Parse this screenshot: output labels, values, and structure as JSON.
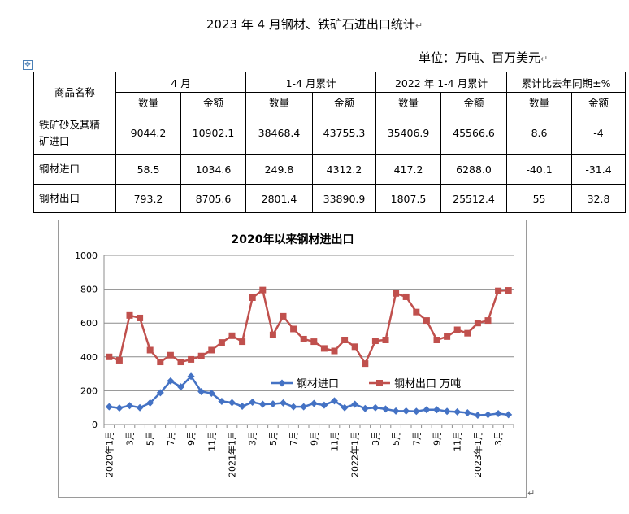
{
  "document": {
    "title": "2023 年 4 月钢材、铁矿石进出口统计",
    "unit": "单位：万吨、百万美元",
    "para_mark": "↵",
    "anchor_icon": "✥"
  },
  "table": {
    "name_header": "商品名称",
    "group_headers": [
      "4 月",
      "1-4 月累计",
      "2022 年 1-4 月累计",
      "累计比去年同期±%"
    ],
    "sub_headers": [
      "数量",
      "金额",
      "数量",
      "金额",
      "数量",
      "金额",
      "数量",
      "金额"
    ],
    "rows": [
      {
        "name_line1": "铁矿砂及其精",
        "name_line2": "矿进口",
        "values": [
          "9044.2",
          "10902.1",
          "38468.4",
          "43755.3",
          "35406.9",
          "45566.6",
          "8.6",
          "-4"
        ]
      },
      {
        "name_line1": "钢材进口",
        "name_line2": "",
        "values": [
          "58.5",
          "1034.6",
          "249.8",
          "4312.2",
          "417.2",
          "6288.0",
          "-40.1",
          "-31.4"
        ]
      },
      {
        "name_line1": "钢材出口",
        "name_line2": "",
        "values": [
          "793.2",
          "8705.6",
          "2801.4",
          "33890.9",
          "1807.5",
          "25512.4",
          "55",
          "32.8"
        ]
      }
    ]
  },
  "chart_data": {
    "type": "line",
    "title": "2020年以来钢材进出口",
    "x": [
      "2020年1月",
      "2020年2月",
      "2020年3月",
      "2020年4月",
      "2020年5月",
      "2020年6月",
      "2020年7月",
      "2020年8月",
      "2020年9月",
      "2020年10月",
      "2020年11月",
      "2020年12月",
      "2021年1月",
      "2021年2月",
      "2021年3月",
      "2021年4月",
      "2021年5月",
      "2021年6月",
      "2021年7月",
      "2021年8月",
      "2021年9月",
      "2021年10月",
      "2021年11月",
      "2021年12月",
      "2022年1月",
      "2022年2月",
      "2022年3月",
      "2022年4月",
      "2022年5月",
      "2022年6月",
      "2022年7月",
      "2022年8月",
      "2022年9月",
      "2022年10月",
      "2022年11月",
      "2022年12月",
      "2023年1月",
      "2023年2月",
      "2023年3月",
      "2023年4月"
    ],
    "tick_labels": [
      "2020年1月",
      "3月",
      "5月",
      "7月",
      "9月",
      "11月",
      "2021年1月",
      "3月",
      "5月",
      "7月",
      "9月",
      "11月",
      "2022年1月",
      "3月",
      "5月",
      "7月",
      "9月",
      "11月",
      "2023年1月",
      "3月"
    ],
    "ylim": [
      0,
      1000
    ],
    "yticks": [
      0,
      200,
      400,
      600,
      800,
      1000
    ],
    "grid": true,
    "legend_position": "center-right",
    "series": [
      {
        "name": "钢材进口",
        "color": "#4472c4",
        "marker": "diamond",
        "values": [
          105,
          98,
          112,
          100,
          128,
          188,
          258,
          223,
          285,
          195,
          185,
          137,
          130,
          108,
          132,
          120,
          122,
          128,
          105,
          105,
          125,
          115,
          140,
          100,
          120,
          95,
          100,
          92,
          80,
          80,
          78,
          88,
          88,
          78,
          75,
          70,
          55,
          58,
          65,
          58
        ]
      },
      {
        "name": "钢材出口 万吨",
        "color": "#c0504d",
        "marker": "square",
        "values": [
          400,
          380,
          645,
          630,
          440,
          370,
          410,
          370,
          385,
          405,
          440,
          485,
          525,
          490,
          750,
          795,
          530,
          640,
          565,
          505,
          490,
          450,
          435,
          500,
          460,
          360,
          495,
          500,
          775,
          755,
          665,
          615,
          500,
          520,
          560,
          540,
          600,
          615,
          790,
          793
        ]
      }
    ]
  }
}
